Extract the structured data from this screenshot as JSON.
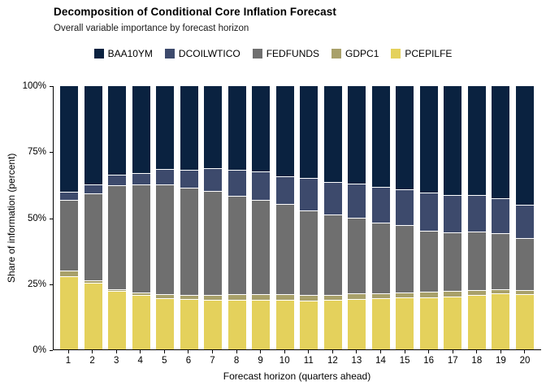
{
  "title": "Decomposition of Conditional Core Inflation Forecast",
  "subtitle": "Overall variable importance by forecast horizon",
  "chart_data": {
    "type": "bar",
    "stacked": true,
    "stacked_to_100_percent": true,
    "title": "Decomposition of Conditional Core Inflation Forecast",
    "subtitle": "Overall variable importance by forecast horizon",
    "xlabel": "Forecast horizon (quarters ahead)",
    "ylabel": "Share of information (percent)",
    "ylim": [
      0,
      100
    ],
    "grid": false,
    "legend_position": "top",
    "yticks": [
      {
        "value": 0,
        "label": "0%"
      },
      {
        "value": 25,
        "label": "25%"
      },
      {
        "value": 50,
        "label": "50%"
      },
      {
        "value": 75,
        "label": "75%"
      },
      {
        "value": 100,
        "label": "100%"
      }
    ],
    "categories": [
      "1",
      "2",
      "3",
      "4",
      "5",
      "6",
      "7",
      "8",
      "9",
      "10",
      "11",
      "12",
      "13",
      "14",
      "15",
      "16",
      "17",
      "18",
      "19",
      "20"
    ],
    "series_note": "series listed top-to-bottom of stack; legend shown in same order",
    "series": [
      {
        "name": "BAA10YM",
        "color": "#0a2240",
        "values": [
          40.5,
          37.5,
          34.0,
          33.2,
          31.7,
          32.0,
          31.5,
          32.2,
          32.8,
          34.5,
          35.2,
          36.8,
          37.3,
          38.7,
          39.4,
          40.7,
          41.8,
          41.8,
          43.0,
          45.3
        ]
      },
      {
        "name": "DCOILWTICO",
        "color": "#3d4a6c",
        "values": [
          3.0,
          3.5,
          4.0,
          4.5,
          6.0,
          7.0,
          8.5,
          9.7,
          10.8,
          10.7,
          12.2,
          12.4,
          13.1,
          13.5,
          13.7,
          14.4,
          14.0,
          13.8,
          13.3,
          12.6
        ]
      },
      {
        "name": "FEDFUNDS",
        "color": "#6f6f6f",
        "values": [
          27.0,
          33.0,
          39.5,
          41.0,
          41.5,
          40.5,
          39.5,
          37.5,
          35.8,
          34.0,
          32.1,
          30.3,
          28.7,
          26.8,
          25.6,
          23.3,
          22.4,
          22.1,
          21.1,
          19.8
        ]
      },
      {
        "name": "GDPC1",
        "color": "#a8a06a",
        "values": [
          2.0,
          1.0,
          0.5,
          0.8,
          1.6,
          1.8,
          2.0,
          2.2,
          2.2,
          2.3,
          2.2,
          2.0,
          2.1,
          2.0,
          2.0,
          2.1,
          2.0,
          1.8,
          1.6,
          1.6
        ]
      },
      {
        "name": "PCEPILFE",
        "color": "#e4d15c",
        "values": [
          27.5,
          25.0,
          22.0,
          20.5,
          19.2,
          18.7,
          18.5,
          18.4,
          18.4,
          18.5,
          18.3,
          18.5,
          18.8,
          19.0,
          19.3,
          19.5,
          19.8,
          20.5,
          21.0,
          20.7
        ]
      }
    ],
    "axis_color": "#000000",
    "separator_color": "#ffffff"
  }
}
